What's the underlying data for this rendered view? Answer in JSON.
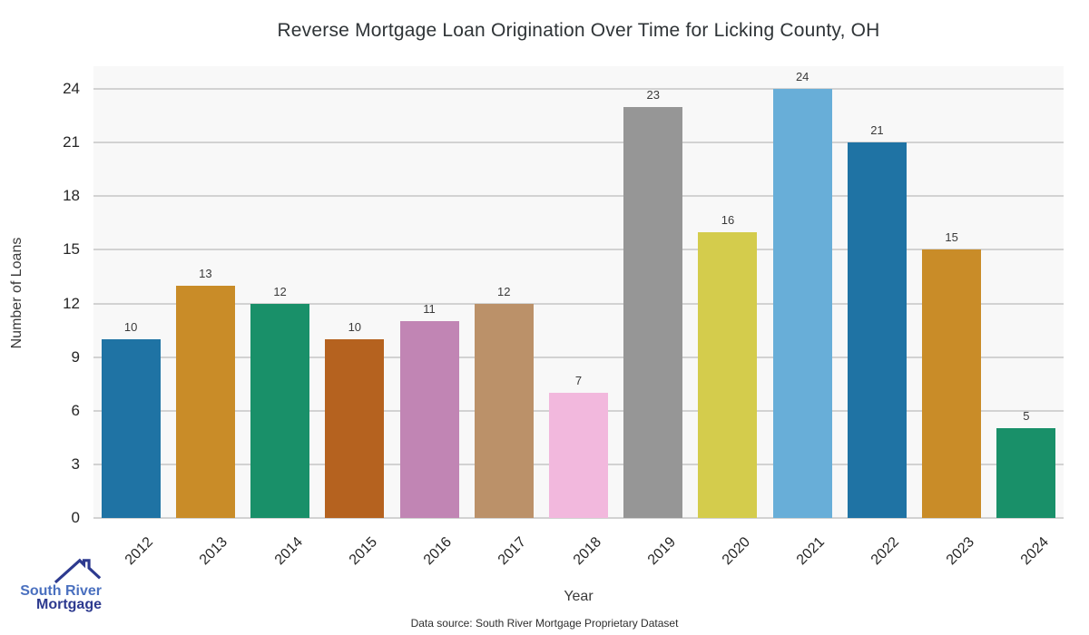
{
  "title": "Reverse Mortgage Loan Origination Over Time for Licking County, OH",
  "chart_data": {
    "type": "bar",
    "categories": [
      "2012",
      "2013",
      "2014",
      "2015",
      "2016",
      "2017",
      "2018",
      "2019",
      "2020",
      "2021",
      "2022",
      "2023",
      "2024"
    ],
    "values": [
      10,
      13,
      12,
      10,
      11,
      12,
      7,
      23,
      16,
      24,
      21,
      15,
      5
    ],
    "bar_colors": [
      "#1f73a4",
      "#c98c28",
      "#199069",
      "#b5621f",
      "#c185b4",
      "#bb9169",
      "#f2b8dd",
      "#969696",
      "#d4cc4c",
      "#68aed8",
      "#1f73a4",
      "#c98c28",
      "#199069"
    ],
    "title": "Reverse Mortgage Loan Origination Over Time for Licking County, OH",
    "xlabel": "Year",
    "ylabel": "Number of Loans",
    "yticks": [
      0,
      3,
      6,
      9,
      12,
      15,
      18,
      21,
      24
    ],
    "ylim": [
      0,
      25.3
    ],
    "grid": true,
    "legend_position": "none",
    "panel_bg": "#f8f8f8",
    "grid_color": "#d2d2d2",
    "bar_value_labels_shown": true
  },
  "footer": {
    "data_source": "Data source: South River Mortgage Proprietary Dataset"
  },
  "logo": {
    "line1": "South River",
    "line2": "Mortgage",
    "line1_color": "#4a70bf",
    "line2_color": "#2d3a8f",
    "icon_color": "#2d3a8f",
    "icon": "house-roof-icon"
  }
}
